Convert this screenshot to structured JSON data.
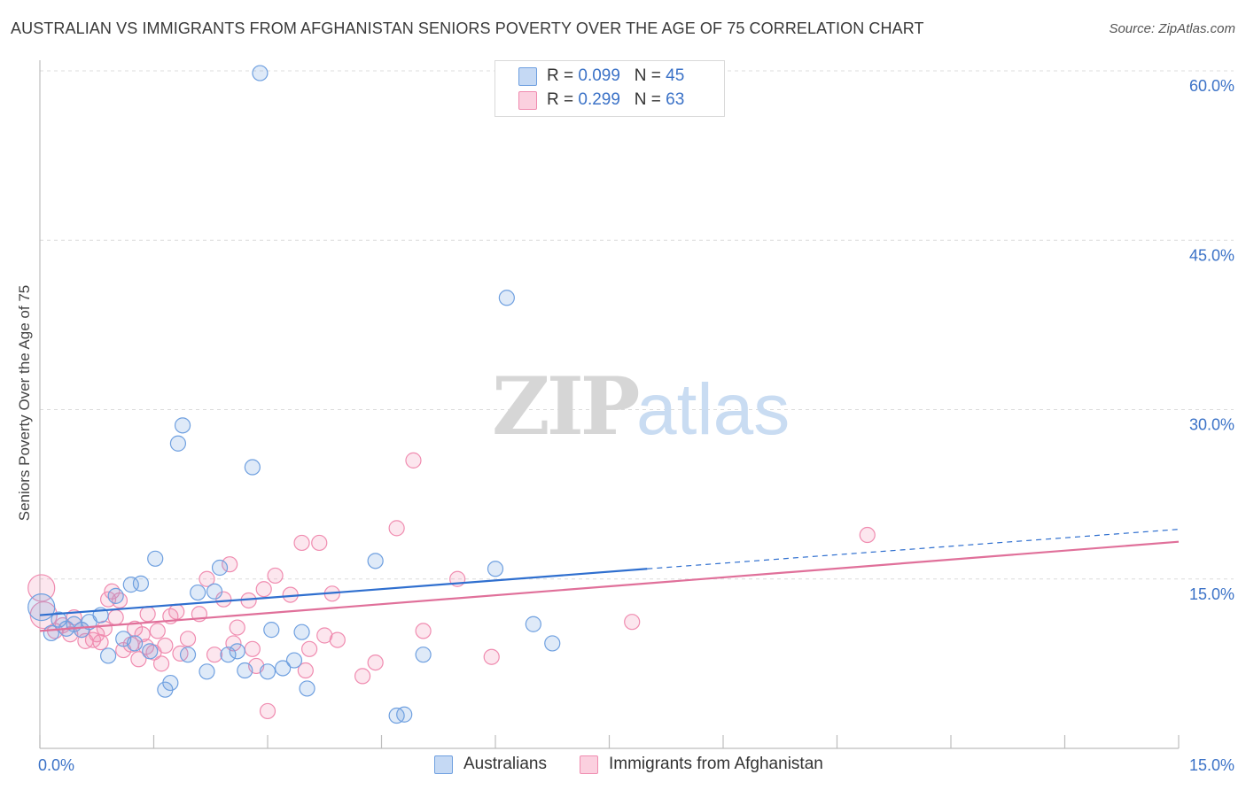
{
  "header": {
    "title": "AUSTRALIAN VS IMMIGRANTS FROM AFGHANISTAN SENIORS POVERTY OVER THE AGE OF 75 CORRELATION CHART",
    "source": "Source: ZipAtlas.com"
  },
  "watermark": {
    "part1": "ZIP",
    "part2": "atlas"
  },
  "legend": {
    "series": [
      {
        "r_label": "R = ",
        "r_value": "0.099",
        "n_label": "N = ",
        "n_value": "45"
      },
      {
        "r_label": "R = ",
        "r_value": "0.299",
        "n_label": "N = ",
        "n_value": "63"
      }
    ]
  },
  "chart_data": {
    "type": "scatter",
    "title": "AUSTRALIAN VS IMMIGRANTS FROM AFGHANISTAN SENIORS POVERTY OVER THE AGE OF 75 CORRELATION CHART",
    "xlabel": "",
    "ylabel": "Seniors Poverty Over the Age of 75",
    "xlim": [
      0,
      15
    ],
    "ylim": [
      0,
      60
    ],
    "x_tick_labels": [
      "0.0%",
      "15.0%"
    ],
    "y_tick_values": [
      15,
      30,
      45,
      60
    ],
    "y_tick_labels": [
      "15.0%",
      "30.0%",
      "45.0%",
      "60.0%"
    ],
    "grid": true,
    "legend_position": "top-center",
    "colors": {
      "australians": "#6fa0e0",
      "afghanistan": "#f08cb0",
      "australians_line": "#2f6fcf",
      "afghanistan_line": "#e0709a"
    },
    "series": [
      {
        "name": "Australians",
        "r": 0.099,
        "n": 45,
        "trend": {
          "x0": 0.0,
          "y0": 11.8,
          "x1": 8.0,
          "y1": 15.9,
          "dashed_to_x": 15.0,
          "dashed_to_y": 19.4
        },
        "points": [
          {
            "x": 0.02,
            "y": 12.5,
            "big": true
          },
          {
            "x": 0.15,
            "y": 10.2
          },
          {
            "x": 0.25,
            "y": 11.4
          },
          {
            "x": 0.35,
            "y": 10.6
          },
          {
            "x": 0.45,
            "y": 11.0
          },
          {
            "x": 0.55,
            "y": 10.5
          },
          {
            "x": 0.65,
            "y": 11.2
          },
          {
            "x": 0.8,
            "y": 11.8
          },
          {
            "x": 0.9,
            "y": 8.2
          },
          {
            "x": 1.0,
            "y": 13.5
          },
          {
            "x": 1.1,
            "y": 9.7
          },
          {
            "x": 1.2,
            "y": 14.5
          },
          {
            "x": 1.25,
            "y": 9.3
          },
          {
            "x": 1.33,
            "y": 14.6
          },
          {
            "x": 1.45,
            "y": 8.6
          },
          {
            "x": 1.52,
            "y": 16.8
          },
          {
            "x": 1.65,
            "y": 5.2
          },
          {
            "x": 1.72,
            "y": 5.8
          },
          {
            "x": 1.82,
            "y": 27.0
          },
          {
            "x": 1.88,
            "y": 28.6
          },
          {
            "x": 1.95,
            "y": 8.3
          },
          {
            "x": 2.08,
            "y": 13.8
          },
          {
            "x": 2.2,
            "y": 6.8
          },
          {
            "x": 2.3,
            "y": 13.9
          },
          {
            "x": 2.37,
            "y": 16.0
          },
          {
            "x": 2.48,
            "y": 8.3
          },
          {
            "x": 2.6,
            "y": 8.6
          },
          {
            "x": 2.7,
            "y": 6.9
          },
          {
            "x": 2.8,
            "y": 24.9
          },
          {
            "x": 2.9,
            "y": 59.8
          },
          {
            "x": 3.0,
            "y": 6.8
          },
          {
            "x": 3.05,
            "y": 10.5
          },
          {
            "x": 3.2,
            "y": 7.1
          },
          {
            "x": 3.35,
            "y": 7.8
          },
          {
            "x": 3.45,
            "y": 10.3
          },
          {
            "x": 3.52,
            "y": 5.3
          },
          {
            "x": 4.42,
            "y": 16.6
          },
          {
            "x": 4.7,
            "y": 2.9
          },
          {
            "x": 4.8,
            "y": 3.0
          },
          {
            "x": 5.05,
            "y": 8.3
          },
          {
            "x": 6.0,
            "y": 15.9
          },
          {
            "x": 6.15,
            "y": 39.9
          },
          {
            "x": 6.5,
            "y": 11.0
          },
          {
            "x": 6.75,
            "y": 9.3
          }
        ]
      },
      {
        "name": "Immigrants from Afghanistan",
        "r": 0.299,
        "n": 63,
        "trend": {
          "x0": 0.0,
          "y0": 10.4,
          "x1": 15.0,
          "y1": 18.3
        },
        "points": [
          {
            "x": 0.02,
            "y": 14.2,
            "big": true
          },
          {
            "x": 0.05,
            "y": 11.8,
            "big": true
          },
          {
            "x": 0.2,
            "y": 10.4
          },
          {
            "x": 0.3,
            "y": 10.9
          },
          {
            "x": 0.4,
            "y": 10.1
          },
          {
            "x": 0.45,
            "y": 11.6
          },
          {
            "x": 0.55,
            "y": 10.5
          },
          {
            "x": 0.6,
            "y": 9.5
          },
          {
            "x": 0.7,
            "y": 9.6
          },
          {
            "x": 0.75,
            "y": 10.1
          },
          {
            "x": 0.8,
            "y": 9.4
          },
          {
            "x": 0.85,
            "y": 10.6
          },
          {
            "x": 0.9,
            "y": 13.2
          },
          {
            "x": 0.95,
            "y": 13.9
          },
          {
            "x": 1.0,
            "y": 11.6
          },
          {
            "x": 1.05,
            "y": 13.1
          },
          {
            "x": 1.1,
            "y": 8.7
          },
          {
            "x": 1.2,
            "y": 9.2
          },
          {
            "x": 1.25,
            "y": 10.6
          },
          {
            "x": 1.3,
            "y": 7.9
          },
          {
            "x": 1.35,
            "y": 10.1
          },
          {
            "x": 1.4,
            "y": 9.0
          },
          {
            "x": 1.42,
            "y": 11.9
          },
          {
            "x": 1.5,
            "y": 8.5
          },
          {
            "x": 1.55,
            "y": 10.4
          },
          {
            "x": 1.6,
            "y": 7.5
          },
          {
            "x": 1.65,
            "y": 9.1
          },
          {
            "x": 1.72,
            "y": 11.7
          },
          {
            "x": 1.8,
            "y": 12.1
          },
          {
            "x": 1.85,
            "y": 8.4
          },
          {
            "x": 1.95,
            "y": 9.7
          },
          {
            "x": 2.1,
            "y": 11.9
          },
          {
            "x": 2.2,
            "y": 15.0
          },
          {
            "x": 2.3,
            "y": 8.3
          },
          {
            "x": 2.42,
            "y": 13.2
          },
          {
            "x": 2.5,
            "y": 16.3
          },
          {
            "x": 2.55,
            "y": 9.3
          },
          {
            "x": 2.6,
            "y": 10.7
          },
          {
            "x": 2.75,
            "y": 13.1
          },
          {
            "x": 2.8,
            "y": 8.8
          },
          {
            "x": 2.85,
            "y": 7.3
          },
          {
            "x": 2.95,
            "y": 14.1
          },
          {
            "x": 3.0,
            "y": 3.3
          },
          {
            "x": 3.1,
            "y": 15.3
          },
          {
            "x": 3.3,
            "y": 13.6
          },
          {
            "x": 3.45,
            "y": 18.2
          },
          {
            "x": 3.5,
            "y": 6.9
          },
          {
            "x": 3.55,
            "y": 8.8
          },
          {
            "x": 3.68,
            "y": 18.2
          },
          {
            "x": 3.75,
            "y": 10.0
          },
          {
            "x": 3.85,
            "y": 13.7
          },
          {
            "x": 3.92,
            "y": 9.6
          },
          {
            "x": 4.25,
            "y": 6.4
          },
          {
            "x": 4.42,
            "y": 7.6
          },
          {
            "x": 4.7,
            "y": 19.5
          },
          {
            "x": 4.92,
            "y": 25.5
          },
          {
            "x": 5.05,
            "y": 10.4
          },
          {
            "x": 5.5,
            "y": 15.0
          },
          {
            "x": 5.95,
            "y": 8.1
          },
          {
            "x": 7.8,
            "y": 11.2
          },
          {
            "x": 10.9,
            "y": 18.9
          }
        ]
      }
    ]
  },
  "bottom_legend": {
    "series1": "Australians",
    "series2": "Immigrants from Afghanistan"
  }
}
